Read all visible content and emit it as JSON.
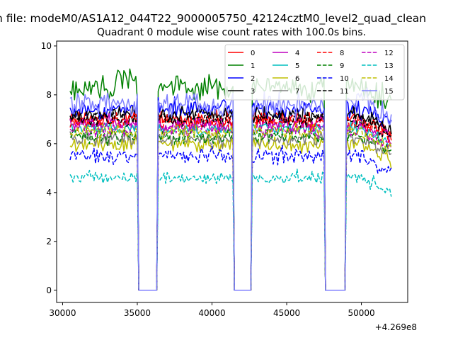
{
  "figure": {
    "suptitle": "n file: modeM0/AS1A12_044T22_9000005750_42124cztM0_level2_quad_clean",
    "title": "Quadrant 0 module wise count rates with 100.0s bins.",
    "offset_label": "+4.269e8"
  },
  "chart_data": {
    "type": "line",
    "title": "Quadrant 0 module wise count rates with 100.0s bins.",
    "xlabel": "",
    "ylabel": "",
    "x_offset": 426900000,
    "xlim": [
      29600,
      53100
    ],
    "ylim": [
      -0.5,
      10.2
    ],
    "xticks": [
      30000,
      35000,
      40000,
      45000,
      50000
    ],
    "xtick_labels": [
      "30000",
      "35000",
      "40000",
      "45000",
      "50000"
    ],
    "yticks": [
      0,
      2,
      4,
      6,
      8,
      10
    ],
    "ytick_labels": [
      "0",
      "2",
      "4",
      "6",
      "8",
      "10"
    ],
    "grid": false,
    "legend_position": "top-right",
    "legend_columns": 4,
    "x_start": 30500,
    "x_end": 52000,
    "bin_width": 100,
    "gaps": [
      [
        35100,
        36300
      ],
      [
        41500,
        42600
      ],
      [
        47600,
        48900
      ]
    ],
    "gap_level": 0,
    "series": [
      {
        "name": "0",
        "color": "#ff0000",
        "dash": "solid",
        "mean": 7.0,
        "spread": 0.3
      },
      {
        "name": "1",
        "color": "#008000",
        "dash": "solid",
        "mean": 8.3,
        "spread": 0.45
      },
      {
        "name": "2",
        "color": "#0000ff",
        "dash": "solid",
        "mean": 7.4,
        "spread": 0.35
      },
      {
        "name": "3",
        "color": "#000000",
        "dash": "solid",
        "mean": 7.2,
        "spread": 0.3
      },
      {
        "name": "4",
        "color": "#bf00bf",
        "dash": "solid",
        "mean": 6.8,
        "spread": 0.3
      },
      {
        "name": "5",
        "color": "#00bfbf",
        "dash": "solid",
        "mean": 6.6,
        "spread": 0.25
      },
      {
        "name": "6",
        "color": "#bfbf00",
        "dash": "solid",
        "mean": 6.0,
        "spread": 0.3
      },
      {
        "name": "7",
        "color": "#808080",
        "dash": "solid",
        "mean": 6.2,
        "spread": 0.3
      },
      {
        "name": "8",
        "color": "#ff0000",
        "dash": "dashed",
        "mean": 6.9,
        "spread": 0.3
      },
      {
        "name": "9",
        "color": "#008000",
        "dash": "dashed",
        "mean": 6.3,
        "spread": 0.3
      },
      {
        "name": "10",
        "color": "#0000ff",
        "dash": "dashed",
        "mean": 5.5,
        "spread": 0.3
      },
      {
        "name": "11",
        "color": "#000000",
        "dash": "dashed",
        "mean": 7.0,
        "spread": 0.3
      },
      {
        "name": "12",
        "color": "#bf00bf",
        "dash": "dashed",
        "mean": 6.6,
        "spread": 0.3
      },
      {
        "name": "13",
        "color": "#00bfbf",
        "dash": "dashed",
        "mean": 4.6,
        "spread": 0.25
      },
      {
        "name": "14",
        "color": "#bfbf00",
        "dash": "dashed",
        "mean": 6.5,
        "spread": 0.3
      },
      {
        "name": "15",
        "color": "#7f7fff",
        "dash": "solid",
        "mean": 7.6,
        "spread": 0.45
      }
    ]
  }
}
